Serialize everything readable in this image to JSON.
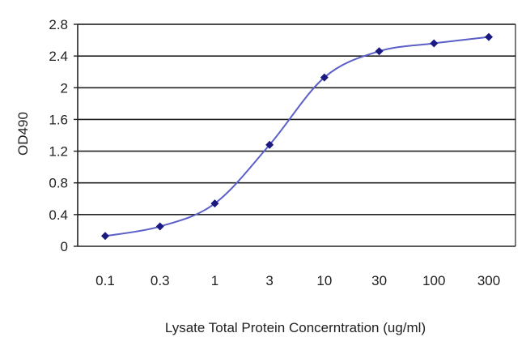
{
  "chart_data": {
    "type": "line",
    "title": "",
    "xlabel": "Lysate Total Protein Concerntration (ug/ml)",
    "ylabel": "OD490",
    "categories": [
      "0.1",
      "0.3",
      "1",
      "3",
      "10",
      "30",
      "100",
      "300"
    ],
    "x": [
      0.1,
      0.3,
      1,
      3,
      10,
      30,
      100,
      300
    ],
    "x_scale": "log",
    "ylim": [
      0,
      2.8
    ],
    "yticks": [
      "0",
      "0.4",
      "0.8",
      "1.2",
      "1.6",
      "2",
      "2.4",
      "2.8"
    ],
    "grid": "horizontal",
    "series": [
      {
        "values": [
          0.13,
          0.25,
          0.54,
          1.28,
          2.13,
          2.46,
          2.56,
          2.64
        ]
      }
    ],
    "colors": {
      "line": "#5b5fc7",
      "marker": "#1a1a80",
      "grid": "#222222",
      "background": "#ffffff"
    }
  }
}
